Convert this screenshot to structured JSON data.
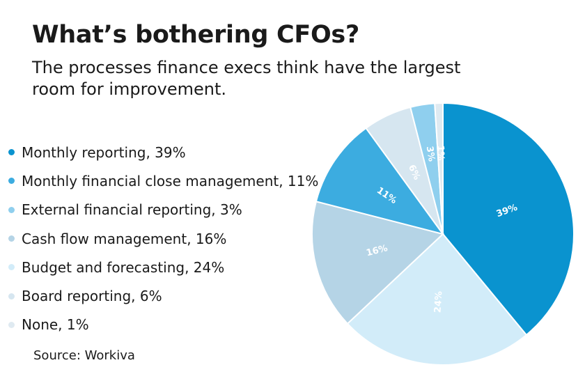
{
  "title": "What’s bothering CFOs?",
  "subtitle": "The processes finance execs think have the largest room for improvement.",
  "source": "Source: Workiva",
  "chart_data": {
    "type": "pie",
    "title": "What’s bothering CFOs?",
    "subtitle": "The processes finance execs think have the largest room for improvement.",
    "slices": [
      {
        "label": "Monthly reporting",
        "value": 39,
        "color": "#0a93cf",
        "legend": "Monthly reporting, 39%",
        "data_label": "39%"
      },
      {
        "label": "Budget and forecasting",
        "value": 24,
        "color": "#d2ecf9",
        "legend": "Budget and forecasting, 24%",
        "data_label": "24%"
      },
      {
        "label": "Cash flow management",
        "value": 16,
        "color": "#b5d4e6",
        "legend": "Cash flow management, 16%",
        "data_label": "16%"
      },
      {
        "label": "Monthly financial close management",
        "value": 11,
        "color": "#3cace0",
        "legend": "Monthly financial close management, 11%",
        "data_label": "11%"
      },
      {
        "label": "Board reporting",
        "value": 6,
        "color": "#d6e6f0",
        "legend": "Board reporting, 6%",
        "data_label": "6%"
      },
      {
        "label": "External financial reporting",
        "value": 3,
        "color": "#8fcfee",
        "legend": "External financial reporting, 3%",
        "data_label": "3%"
      },
      {
        "label": "None",
        "value": 1,
        "color": "#dfeaf1",
        "legend": "None, 1%",
        "data_label": "1%"
      }
    ],
    "legend_order": [
      0,
      3,
      5,
      2,
      1,
      4,
      6
    ],
    "legend_placement": "left"
  }
}
